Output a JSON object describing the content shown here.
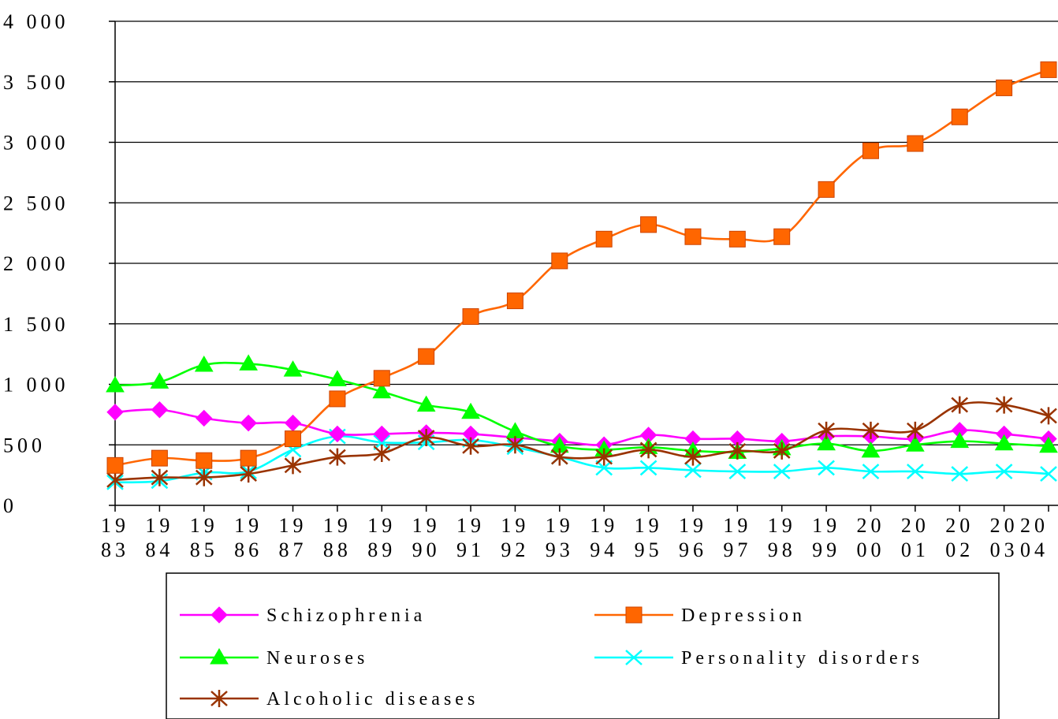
{
  "chart_data": {
    "type": "line",
    "title": "",
    "xlabel": "",
    "ylabel": "",
    "ylim": [
      0,
      4000
    ],
    "y_ticks": [
      0,
      500,
      1000,
      1500,
      2000,
      2500,
      3000,
      3500,
      4000
    ],
    "y_tick_labels": [
      "0",
      "500",
      "1 000",
      "1 500",
      "2 000",
      "2 500",
      "3 000",
      "3 500",
      "4 000"
    ],
    "grid": "horizontal",
    "legend_position": "bottom",
    "categories": [
      "1983",
      "1984",
      "1985",
      "1986",
      "1987",
      "1988",
      "1989",
      "1990",
      "1991",
      "1992",
      "1993",
      "1994",
      "1995",
      "1996",
      "1997",
      "1998",
      "1999",
      "2000",
      "2001",
      "2002",
      "2003",
      "2004"
    ],
    "category_labels": [
      [
        "19",
        "83"
      ],
      [
        "19",
        "84"
      ],
      [
        "19",
        "85"
      ],
      [
        "19",
        "86"
      ],
      [
        "19",
        "87"
      ],
      [
        "19",
        "88"
      ],
      [
        "19",
        "89"
      ],
      [
        "19",
        "90"
      ],
      [
        "19",
        "91"
      ],
      [
        "19",
        "92"
      ],
      [
        "19",
        "93"
      ],
      [
        "19",
        "94"
      ],
      [
        "19",
        "95"
      ],
      [
        "19",
        "96"
      ],
      [
        "19",
        "97"
      ],
      [
        "19",
        "98"
      ],
      [
        "19",
        "99"
      ],
      [
        "20",
        "00"
      ],
      [
        "20",
        "01"
      ],
      [
        "20",
        "02"
      ],
      [
        "20",
        "03"
      ],
      [
        "20",
        "04"
      ]
    ],
    "series": [
      {
        "name": "Schizophrenia",
        "color": "#ff00ff",
        "marker": "diamond",
        "values": [
          770,
          790,
          720,
          680,
          680,
          590,
          590,
          600,
          590,
          560,
          530,
          500,
          580,
          550,
          550,
          530,
          570,
          570,
          550,
          620,
          590,
          550
        ]
      },
      {
        "name": "Depression",
        "color": "#ff6600",
        "marker": "square",
        "values": [
          330,
          390,
          370,
          390,
          550,
          880,
          1050,
          1230,
          1560,
          1690,
          2020,
          2200,
          2320,
          2220,
          2200,
          2220,
          2610,
          2930,
          2990,
          3210,
          3450,
          3600
        ]
      },
      {
        "name": "Neuroses",
        "color": "#00ff00",
        "marker": "triangle",
        "values": [
          990,
          1020,
          1160,
          1170,
          1120,
          1040,
          940,
          830,
          770,
          610,
          490,
          460,
          480,
          450,
          440,
          470,
          510,
          450,
          500,
          530,
          510,
          490
        ]
      },
      {
        "name": "Personality disorders",
        "color": "#00ffff",
        "marker": "x",
        "values": [
          190,
          200,
          270,
          280,
          460,
          570,
          520,
          520,
          540,
          480,
          400,
          310,
          310,
          290,
          280,
          280,
          310,
          280,
          280,
          260,
          280,
          260
        ]
      },
      {
        "name": "Alcoholic diseases",
        "color": "#993300",
        "marker": "asterisk",
        "values": [
          210,
          230,
          230,
          260,
          330,
          400,
          430,
          560,
          490,
          500,
          400,
          400,
          460,
          400,
          450,
          450,
          620,
          620,
          620,
          830,
          830,
          740
        ]
      }
    ]
  }
}
